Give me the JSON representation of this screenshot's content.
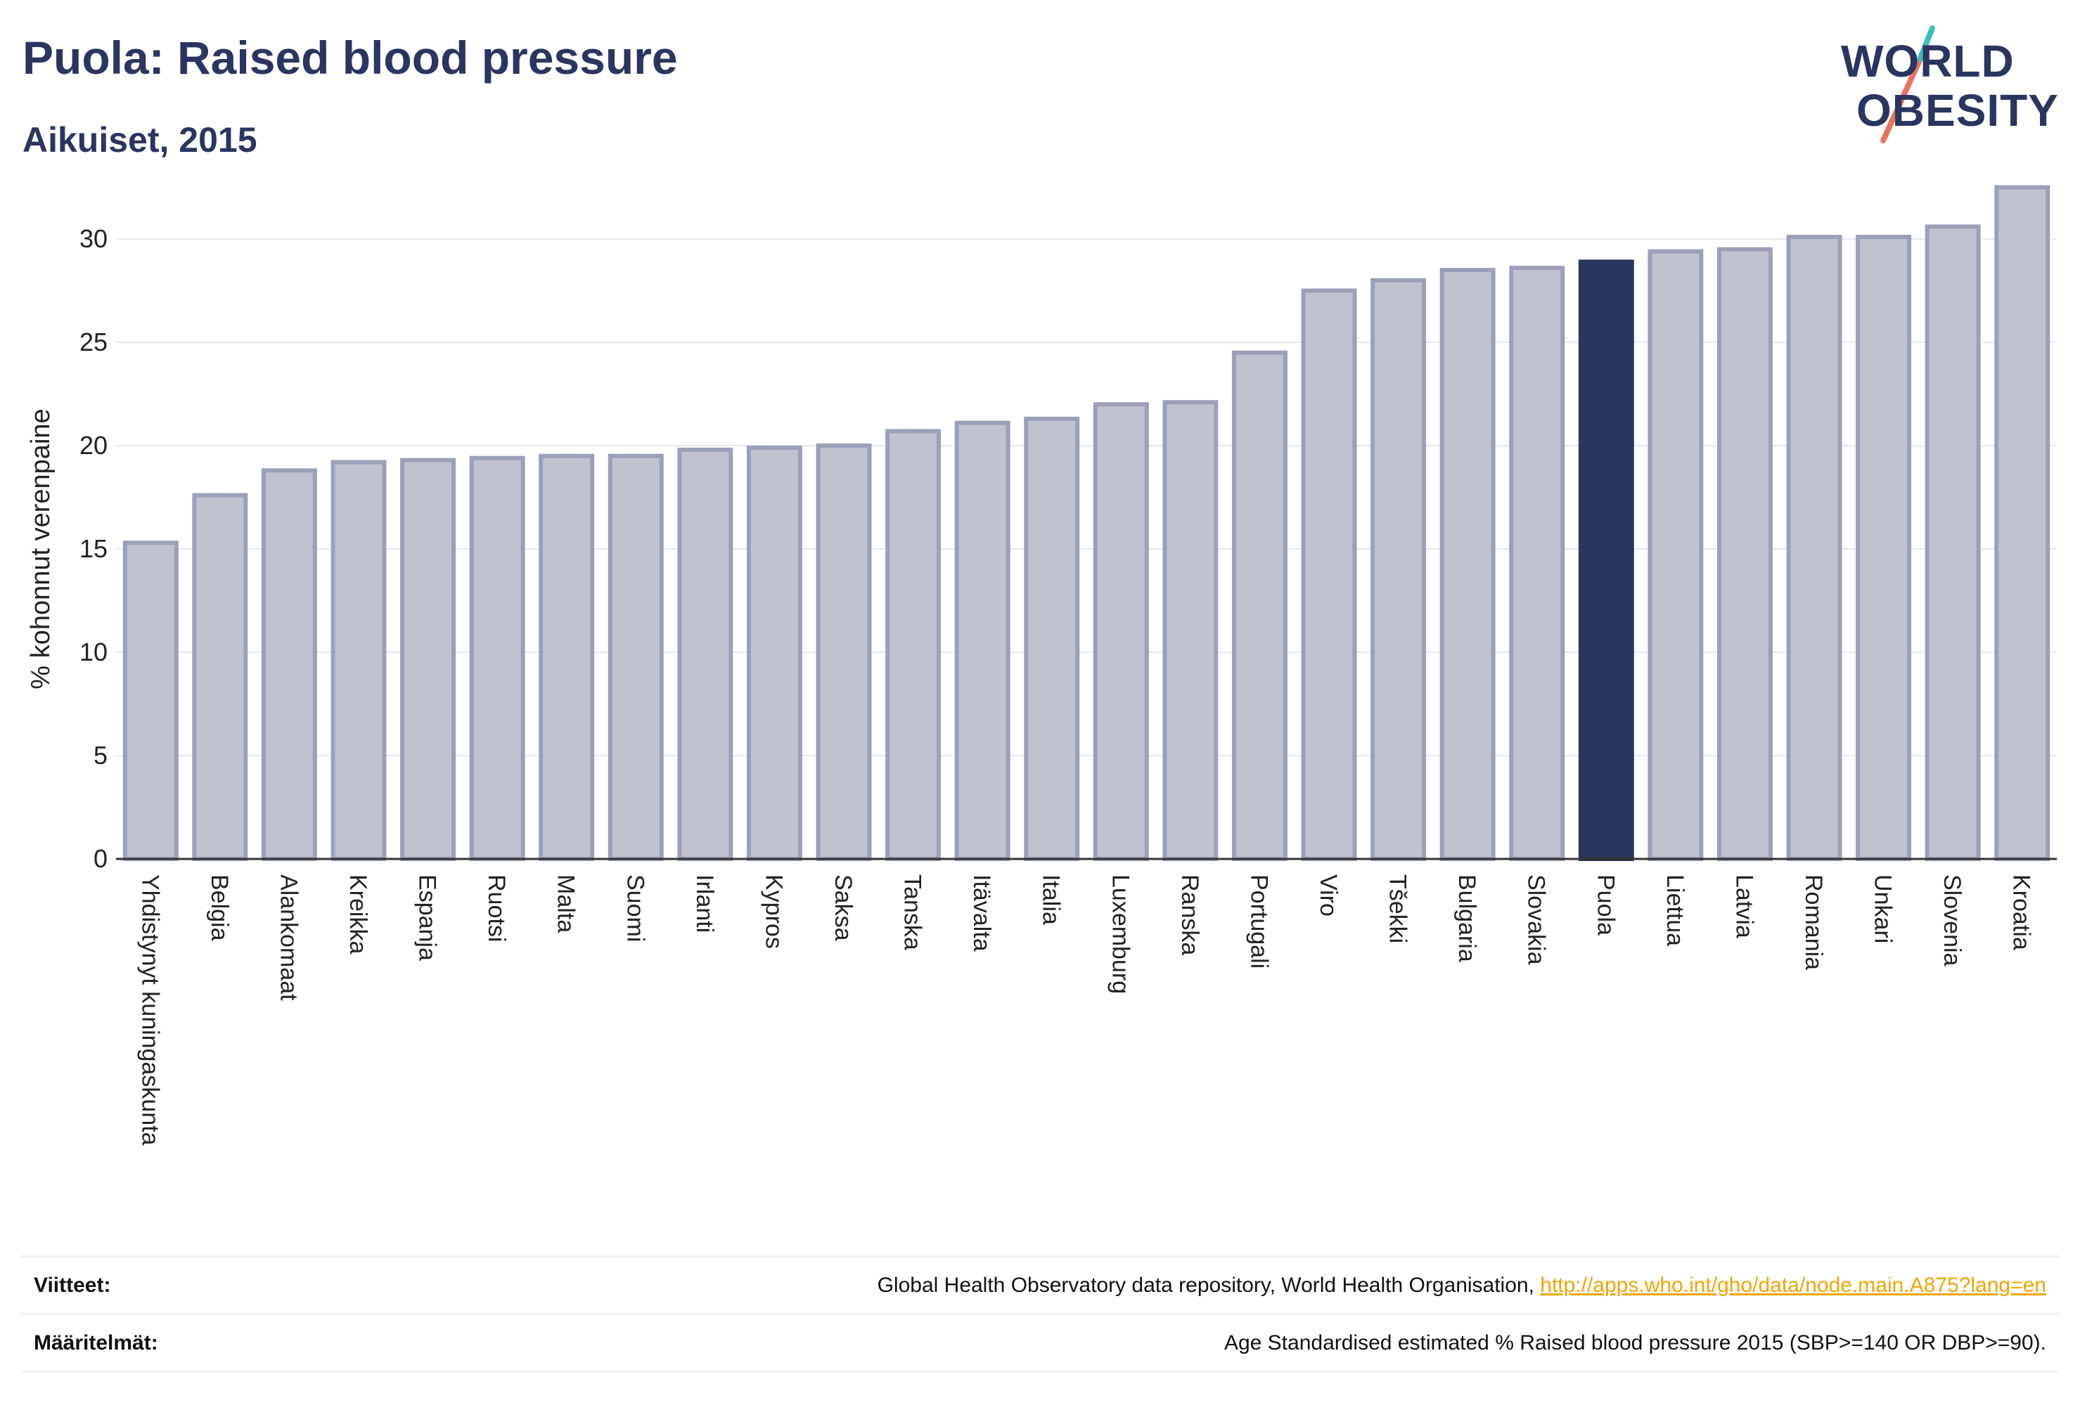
{
  "header": {
    "title": "Puola: Raised blood pressure",
    "subtitle": "Aikuiset, 2015"
  },
  "logo": {
    "line1": "WORLD",
    "line2": "OBESITY",
    "accent_teal": "#3bbfb6",
    "accent_coral": "#e8735a"
  },
  "chart_data": {
    "type": "bar",
    "title": "Puola: Raised blood pressure",
    "subtitle": "Aikuiset, 2015",
    "xlabel": "",
    "ylabel": "% kohonnut verenpaine",
    "ylim": [
      0,
      33
    ],
    "yticks": [
      0,
      5,
      10,
      15,
      20,
      25,
      30
    ],
    "grid": true,
    "highlight": "Puola",
    "colors": {
      "default_fill": "#c0c3cf",
      "default_stroke": "#9aa0b8",
      "highlight_fill": "#2a3560"
    },
    "categories": [
      "Yhdistynyt kuningaskunta",
      "Belgia",
      "Alankomaat",
      "Kreikka",
      "Espanja",
      "Ruotsi",
      "Malta",
      "Suomi",
      "Irlanti",
      "Kypros",
      "Saksa",
      "Tanska",
      "Itävalta",
      "Italia",
      "Luxemburg",
      "Ranska",
      "Portugali",
      "Viro",
      "Tšekki",
      "Bulgaria",
      "Slovakia",
      "Puola",
      "Liettua",
      "Latvia",
      "Romania",
      "Unkari",
      "Slovenia",
      "Kroatia"
    ],
    "values": [
      15.3,
      17.6,
      18.8,
      19.2,
      19.3,
      19.4,
      19.5,
      19.5,
      19.8,
      19.9,
      20.0,
      20.7,
      21.1,
      21.3,
      22.0,
      22.1,
      24.5,
      27.5,
      28.0,
      28.5,
      28.6,
      28.9,
      29.4,
      29.5,
      30.1,
      30.1,
      30.6,
      32.5
    ]
  },
  "footer": {
    "sources_label": "Viitteet:",
    "sources_text": "Global Health Observatory data repository, World Health Organisation, ",
    "sources_link": "http://apps.who.int/gho/data/node.main.A875?lang=en",
    "definitions_label": "Määritelmät:",
    "definitions_text": "Age Standardised estimated % Raised blood pressure 2015 (SBP>=140 OR DBP>=90)."
  }
}
